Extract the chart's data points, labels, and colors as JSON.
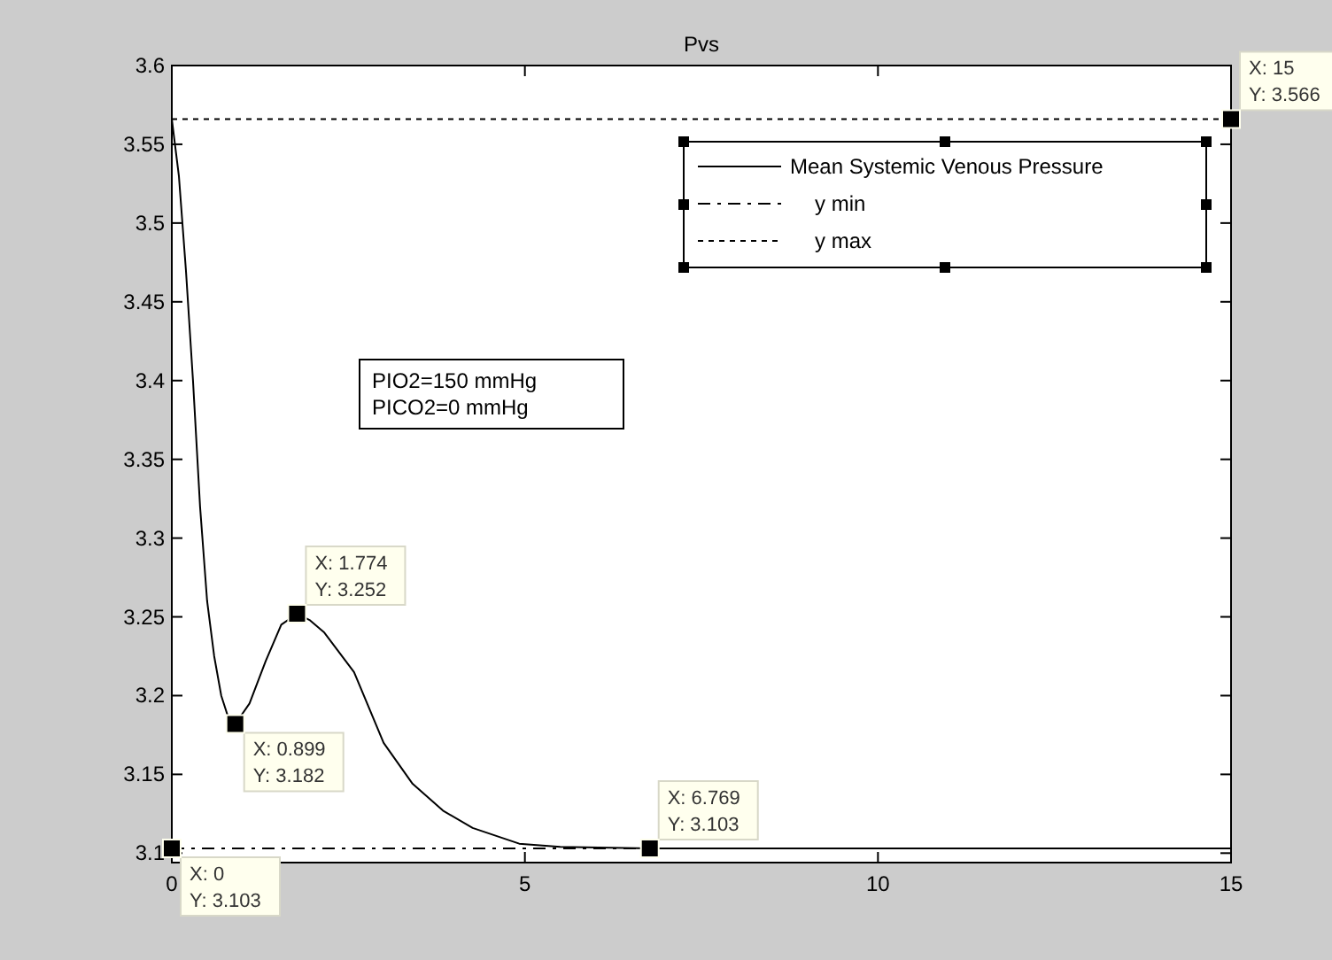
{
  "chart_data": {
    "type": "line",
    "title": "Pvs",
    "xlim": [
      0,
      15
    ],
    "xticks": [
      0,
      5,
      10,
      15
    ],
    "ylim": [
      3.094,
      3.6
    ],
    "yticks": [
      3.1,
      3.15,
      3.2,
      3.25,
      3.3,
      3.35,
      3.4,
      3.45,
      3.5,
      3.55,
      3.6
    ],
    "grid": false,
    "legend": "top right",
    "series": [
      {
        "name": "Mean Systemic Venous Pressure",
        "color": "#000000",
        "line_style": "solid",
        "x": [
          0,
          0.1,
          0.2,
          0.3,
          0.4,
          0.5,
          0.6,
          0.7,
          0.8,
          0.899,
          1.1,
          1.33,
          1.55,
          1.774,
          1.95,
          2.16,
          2.58,
          3.0,
          3.41,
          3.84,
          4.26,
          4.92,
          5.5,
          6.769,
          10,
          15
        ],
        "values": [
          3.566,
          3.53,
          3.47,
          3.4,
          3.32,
          3.26,
          3.225,
          3.2,
          3.186,
          3.182,
          3.195,
          3.222,
          3.245,
          3.252,
          3.248,
          3.24,
          3.215,
          3.17,
          3.144,
          3.127,
          3.116,
          3.106,
          3.104,
          3.103,
          3.103,
          3.103
        ]
      },
      {
        "name": "y min",
        "color": "#000000",
        "line_style": "dashed",
        "x": [
          0,
          15
        ],
        "values": [
          3.103,
          3.103
        ]
      },
      {
        "name": "y max",
        "color": "#000000",
        "line_style": "dotted",
        "x": [
          0,
          15
        ],
        "values": [
          3.566,
          3.566
        ]
      }
    ],
    "annotations": [
      "PIO2=150 mmHg\nPICO2=0 mmHg",
      {
        "text": "X: 0\nY: 3.103",
        "x": 0,
        "y": 3.103
      },
      {
        "text": "X: 0.899\nY: 3.182",
        "x": 0.899,
        "y": 3.182
      },
      {
        "text": "X: 1.774\nY: 3.252",
        "x": 1.774,
        "y": 3.252
      },
      {
        "text": "X: 6.769\nY: 3.103",
        "x": 6.769,
        "y": 3.103
      },
      {
        "text": "X: 15\nY: 3.566",
        "x": 15,
        "y": 3.566
      }
    ]
  }
}
